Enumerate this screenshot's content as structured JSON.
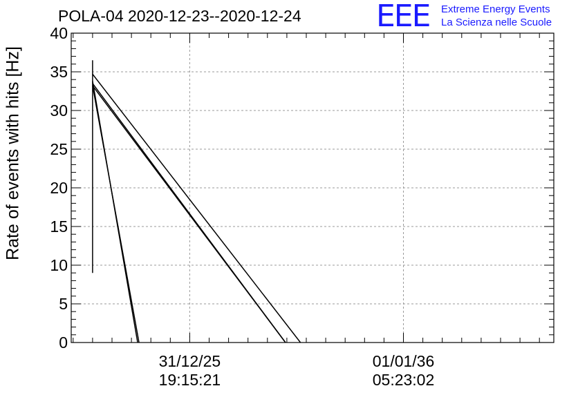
{
  "chart_data": {
    "type": "line",
    "title": "POLA-04 2020-12-23--2020-12-24",
    "xlabel": "",
    "ylabel": "Rate of events with hits [Hz]",
    "ylim": [
      0,
      40
    ],
    "yticks": [
      0,
      5,
      10,
      15,
      20,
      25,
      30,
      35,
      40
    ],
    "x_tick_labels": [
      {
        "date": "31/12/25",
        "time": "19:15:21"
      },
      {
        "date": "01/01/36",
        "time": "05:23:02"
      }
    ],
    "grid": true,
    "segments": [
      {
        "x0": -1.0,
        "y0": 9.0,
        "x1": -1.0,
        "y1": 36.5
      },
      {
        "x0": -1.0,
        "y0": 34.7,
        "x1": 9.7,
        "y1": 0
      },
      {
        "x0": -1.0,
        "y0": 33.5,
        "x1": 8.93,
        "y1": 0
      },
      {
        "x0": -1.0,
        "y0": 33.2,
        "x1": 8.93,
        "y1": 0
      },
      {
        "x0": -1.0,
        "y0": 33.8,
        "x1": 1.32,
        "y1": 0
      },
      {
        "x0": -1.0,
        "y0": 33.2,
        "x1": 1.39,
        "y1": 0
      }
    ]
  },
  "logo": {
    "mark": "EEE",
    "line1": "Extreme Energy Events",
    "line2": "La Scienza nelle Scuole",
    "color": "#1a1aff"
  }
}
